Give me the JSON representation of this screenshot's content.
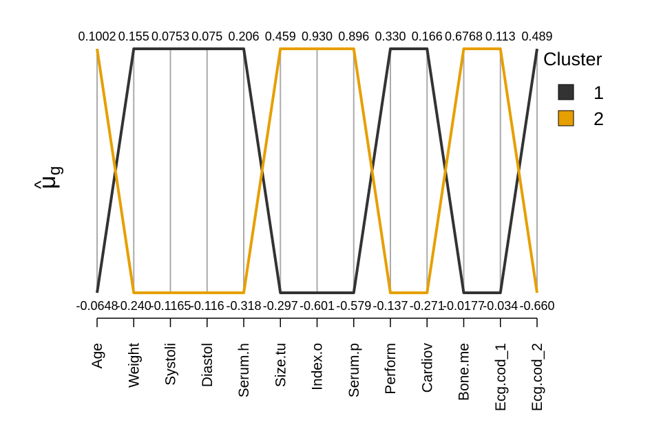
{
  "chart_data": {
    "type": "line",
    "subtype": "parallel-coordinates",
    "ylabel": "μ̂g",
    "ylabel_parts": {
      "main": "μ",
      "hat": "^",
      "subscript": "g"
    },
    "variables": [
      "Age",
      "Weight",
      "Systoli",
      "Diastol",
      "Serum.h",
      "Size.tu",
      "Index.o",
      "Serum.p",
      "Perform",
      "Cardiov",
      "Bone.me",
      "Ecg.cod_1",
      "Ecg.cod_2"
    ],
    "max_labels": [
      "0.1002",
      "0.155",
      "0.0753",
      "0.075",
      "0.206",
      "0.459",
      "0.930",
      "0.896",
      "0.330",
      "0.166",
      "0.6768",
      "0.113",
      "0.489"
    ],
    "min_labels": [
      "-0.0648",
      "-0.240",
      "-0.1165",
      "-0.116",
      "-0.318",
      "-0.297",
      "-0.601",
      "-0.579",
      "-0.137",
      "-0.271",
      "-0.0177",
      "-0.034",
      "-0.660"
    ],
    "series": [
      {
        "name": "1",
        "color": "#333333",
        "values": [
          -0.0648,
          0.155,
          0.0753,
          0.075,
          0.206,
          -0.297,
          -0.601,
          -0.579,
          0.33,
          0.166,
          -0.0177,
          -0.034,
          0.489
        ]
      },
      {
        "name": "2",
        "color": "#E69F00",
        "values": [
          0.1002,
          -0.24,
          -0.1165,
          -0.116,
          -0.318,
          0.459,
          0.93,
          0.896,
          -0.137,
          -0.271,
          0.6768,
          0.113,
          -0.66
        ]
      }
    ],
    "legend": {
      "title": "Cluster",
      "position": "right"
    },
    "grid": false,
    "axis_line_color": "#aaaaaa"
  }
}
